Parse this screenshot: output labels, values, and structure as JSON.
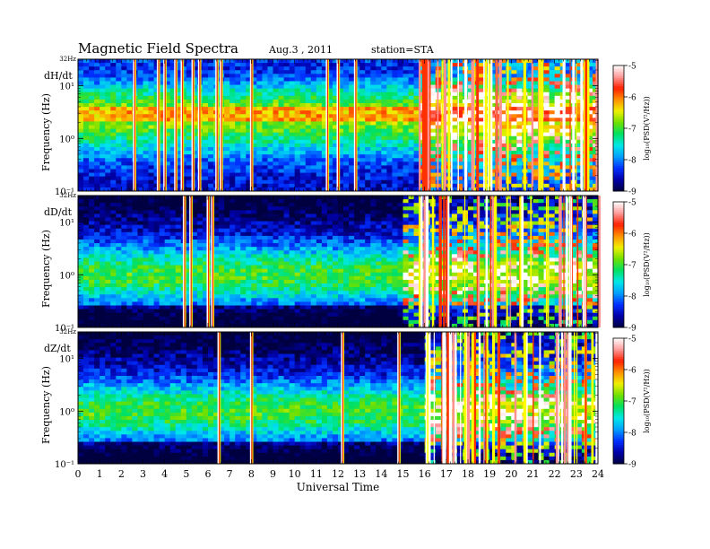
{
  "header": {
    "title": "Magnetic  Field  Spectra",
    "date": "Aug.3  , 2011",
    "station": "station=STA"
  },
  "colors": {
    "colormap": [
      "#000040",
      "#0000a8",
      "#0030ff",
      "#00a0ff",
      "#00e8e8",
      "#00e060",
      "#70e000",
      "#f0f000",
      "#ff9000",
      "#ff2000",
      "#ff9a9a",
      "#ffffff"
    ]
  },
  "chart_data": [
    {
      "type": "heatmap",
      "panel_label": "dH/dt",
      "ylabel": "Frequency  (Hz)",
      "y_top_label": "32Hz",
      "y_ticks": [
        "10¹",
        "10⁰",
        "10⁻¹"
      ],
      "ylim_hz": [
        0.1,
        32
      ],
      "xlim_hours": [
        0,
        24
      ],
      "colorbar": {
        "label": "log₁₀(PSD(V²/Hz))",
        "ticks": [
          "-5",
          "-6",
          "-7",
          "-8",
          "-9"
        ],
        "range": [
          -9,
          -5
        ]
      },
      "band_hz": [
        2,
        4
      ],
      "band_level": -6.2,
      "spikes_hours": [
        2.6,
        3.7,
        4.0,
        4.5,
        4.8,
        5.3,
        5.6,
        6.4,
        6.6,
        8.0,
        11.5,
        12.0,
        12.8
      ]
    },
    {
      "type": "heatmap",
      "panel_label": "dD/dt",
      "ylabel": "Frequency  (Hz)",
      "y_top_label": "32Hz",
      "y_ticks": [
        "10¹",
        "10⁰",
        "10⁻¹"
      ],
      "ylim_hz": [
        0.1,
        32
      ],
      "xlim_hours": [
        0,
        24
      ],
      "colorbar": {
        "label": "log₁₀(PSD(V²/Hz))",
        "ticks": [
          "-5",
          "-6",
          "-7",
          "-8",
          "-9"
        ],
        "range": [
          -9,
          -5
        ]
      },
      "band_hz": null,
      "band_level": null,
      "spikes_hours": [
        4.9,
        5.2,
        6.0,
        6.2
      ]
    },
    {
      "type": "heatmap",
      "panel_label": "dZ/dt",
      "ylabel": "Frequency  (Hz)",
      "y_top_label": "32Hz",
      "y_ticks": [
        "10¹",
        "10⁰",
        "10⁻¹"
      ],
      "ylim_hz": [
        0.1,
        32
      ],
      "xlim_hours": [
        0,
        24
      ],
      "colorbar": {
        "label": "log₁₀(PSD(V²/Hz))",
        "ticks": [
          "-5",
          "-6",
          "-7",
          "-8",
          "-9"
        ],
        "range": [
          -9,
          -5
        ]
      },
      "band_hz": null,
      "band_level": null,
      "spikes_hours": [
        6.5,
        8.0,
        12.2,
        14.8
      ]
    }
  ],
  "xaxis": {
    "label": "Universal Time",
    "ticks": [
      "0",
      "1",
      "2",
      "3",
      "4",
      "5",
      "6",
      "7",
      "8",
      "9",
      "10",
      "11",
      "12",
      "13",
      "14",
      "15",
      "16",
      "17",
      "18",
      "19",
      "20",
      "21",
      "22",
      "23",
      "24"
    ]
  },
  "disturbance": {
    "start_hours": [
      15.7,
      15.0,
      16.0
    ],
    "end_hours": 24
  }
}
